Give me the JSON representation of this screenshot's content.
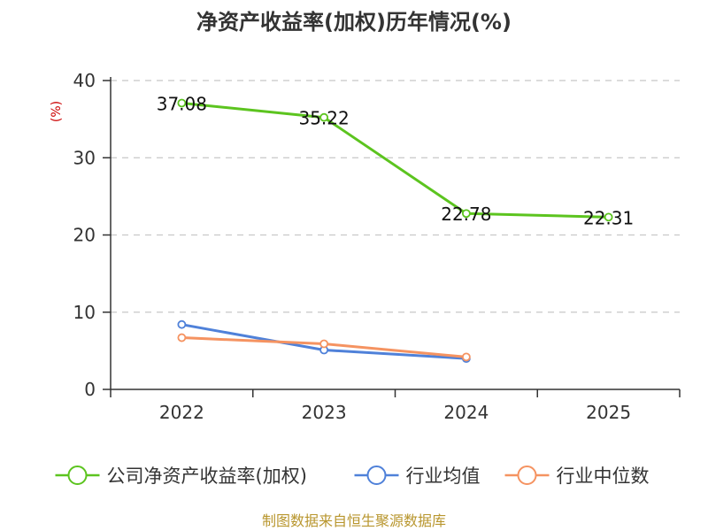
{
  "chart_data": {
    "type": "line",
    "title": "净资产收益率(加权)历年情况(%)",
    "ylabel": "(%)",
    "xlabel": "",
    "categories": [
      "2022",
      "2023",
      "2024",
      "2025"
    ],
    "ylim": [
      0,
      40
    ],
    "yticks": [
      0,
      10,
      20,
      30,
      40
    ],
    "grid": true,
    "legend_position": "bottom",
    "series": [
      {
        "name": "公司净资产收益率(加权)",
        "color": "#5cc41f",
        "values": [
          37.08,
          35.22,
          22.78,
          22.31
        ],
        "labels": [
          "37.08",
          "35.22",
          "22.78",
          "22.31"
        ]
      },
      {
        "name": "行业均值",
        "color": "#4f81d9",
        "values": [
          8.4,
          5.1,
          4.0,
          null
        ]
      },
      {
        "name": "行业中位数",
        "color": "#f59361",
        "values": [
          6.7,
          5.9,
          4.2,
          null
        ]
      }
    ],
    "source": "制图数据来自恒生聚源数据库"
  }
}
